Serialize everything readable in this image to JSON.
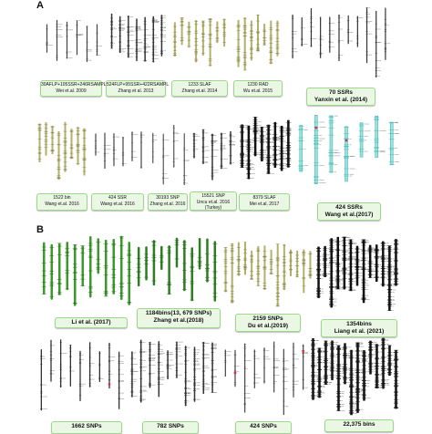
{
  "panels": {
    "a": "A",
    "b": "B"
  },
  "colors": {
    "caption_bg": "#eaf7e4",
    "caption_border": "#9dd88a",
    "chrom_green": "#3a9a2a",
    "chrom_olive": "#b3b06a",
    "chrom_teal": "#2fb5b0",
    "chrom_black": "#111111",
    "marker_red": "#d9304a"
  },
  "captions_a": [
    {
      "line1": "30AFLP+105SSR+246RSAMPL",
      "line2": "Wei et.al. 2009"
    },
    {
      "line1": "524FLP+95SSR+422RSAMPL",
      "line2": "Zhang et al. 2013"
    },
    {
      "line1": "1233 SLAF",
      "line2": "Zhang et.al. 2014"
    },
    {
      "line1": "1230 RAD",
      "line2": "Wu et.al. 2015"
    },
    {
      "line1": "70 SSRs",
      "line2": "Yanxin et al. (2014)"
    },
    {
      "line1": "1522 bin",
      "line2": "Wang et.al. 2016"
    },
    {
      "line1": "424 SSR",
      "line2": "Wang et.al. 2016"
    },
    {
      "line1": "30193 SNP",
      "line2": "Zhang et.al. 2016"
    },
    {
      "line1": "15521 SNP",
      "line2": "Uncu et.al. 2016 (Turkey)"
    },
    {
      "line1": "8379 SLAF",
      "line2": "Mei et.al. 2017"
    },
    {
      "line1": "424 SSRs",
      "line2": "Wang et al.(2017)"
    }
  ],
  "captions_b": [
    {
      "line1": "Li et al. (2017)",
      "line2": ""
    },
    {
      "line1": "1184bins(13, 679 SNPs)",
      "line2": "Zhang et al.(2018)"
    },
    {
      "line1": "2159 SNPs",
      "line2": "Du et al.(2019)"
    },
    {
      "line1": "1354bins",
      "line2": "Liang et al. (2021)"
    },
    {
      "line1": "1662 SNPs",
      "line2": ""
    },
    {
      "line1": "782 SNPs",
      "line2": ""
    },
    {
      "line1": "424 SNPs",
      "line2": ""
    },
    {
      "line1": "22,375 bins",
      "line2": ""
    }
  ]
}
